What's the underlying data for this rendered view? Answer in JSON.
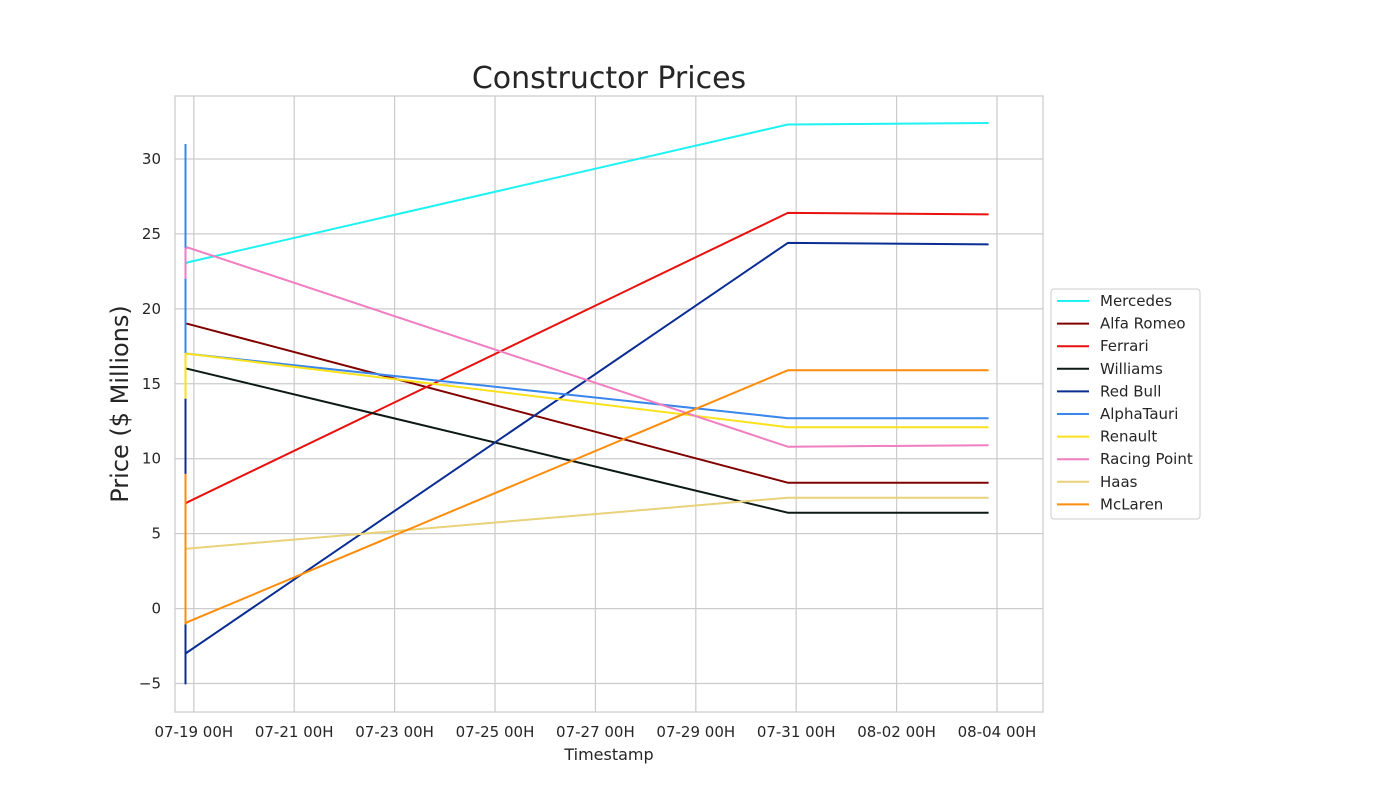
{
  "chart_data": {
    "type": "line",
    "title": "Constructor Prices",
    "xlabel": "Timestamp",
    "ylabel": "Price ($ Millions)",
    "x_ticks": [
      "07-19 00H",
      "07-21 00H",
      "07-23 00H",
      "07-25 00H",
      "07-27 00H",
      "07-29 00H",
      "07-31 00H",
      "08-02 00H",
      "08-04 00H"
    ],
    "y_ticks": [
      -5,
      0,
      5,
      10,
      15,
      20,
      25,
      30
    ],
    "xlim": [
      "2020-07-18T15:00",
      "2020-08-04T22:00"
    ],
    "ylim": [
      -6.9,
      34.2
    ],
    "grid": true,
    "legend_position": "center-right",
    "series": [
      {
        "name": "Mercedes",
        "color": "#1ef2f2",
        "points": [
          [
            "2020-07-18T20:00",
            27.0
          ],
          [
            "2020-07-18T20:00",
            23.0
          ],
          [
            "2020-07-18T21:00",
            23.1
          ],
          [
            "2020-07-30T20:00",
            32.3
          ],
          [
            "2020-08-03T20:00",
            32.4
          ]
        ]
      },
      {
        "name": "Alfa Romeo",
        "color": "#800000",
        "points": [
          [
            "2020-07-18T20:00",
            25.0
          ],
          [
            "2020-07-18T20:00",
            19.0
          ],
          [
            "2020-07-18T21:00",
            19.0
          ],
          [
            "2020-07-30T20:00",
            8.4
          ],
          [
            "2020-08-03T20:00",
            8.4
          ]
        ]
      },
      {
        "name": "Ferrari",
        "color": "#e8110e",
        "points": [
          [
            "2020-07-18T20:00",
            12.0
          ],
          [
            "2020-07-18T20:00",
            7.0
          ],
          [
            "2020-07-18T21:00",
            7.1
          ],
          [
            "2020-07-30T20:00",
            26.4
          ],
          [
            "2020-08-03T20:00",
            26.3
          ]
        ]
      },
      {
        "name": "Williams",
        "color": "#0d1a14",
        "points": [
          [
            "2020-07-18T20:00",
            18.0
          ],
          [
            "2020-07-18T20:00",
            16.0
          ],
          [
            "2020-07-18T21:00",
            16.0
          ],
          [
            "2020-07-30T20:00",
            6.4
          ],
          [
            "2020-08-03T20:00",
            6.4
          ]
        ]
      },
      {
        "name": "Red Bull",
        "color": "#0a2d94",
        "points": [
          [
            "2020-07-18T20:00",
            24.0
          ],
          [
            "2020-07-18T20:00",
            -5.0
          ],
          [
            "2020-07-18T20:00",
            -3.0
          ],
          [
            "2020-07-30T20:00",
            24.4
          ],
          [
            "2020-08-03T20:00",
            24.3
          ]
        ]
      },
      {
        "name": "AlphaTauri",
        "color": "#3a87ec",
        "points": [
          [
            "2020-07-18T20:00",
            31.0
          ],
          [
            "2020-07-18T20:00",
            17.0
          ],
          [
            "2020-07-18T21:00",
            17.0
          ],
          [
            "2020-07-30T20:00",
            12.7
          ],
          [
            "2020-08-03T20:00",
            12.7
          ]
        ]
      },
      {
        "name": "Renault",
        "color": "#f9e21b",
        "points": [
          [
            "2020-07-18T20:00",
            14.0
          ],
          [
            "2020-07-18T20:00",
            17.0
          ],
          [
            "2020-07-18T21:00",
            17.0
          ],
          [
            "2020-07-30T20:00",
            12.1
          ],
          [
            "2020-08-03T20:00",
            12.1
          ]
        ]
      },
      {
        "name": "Racing Point",
        "color": "#f07ec0",
        "points": [
          [
            "2020-07-18T20:00",
            22.0
          ],
          [
            "2020-07-18T20:00",
            24.0
          ],
          [
            "2020-07-18T21:00",
            24.1
          ],
          [
            "2020-07-30T20:00",
            10.8
          ],
          [
            "2020-08-03T20:00",
            10.9
          ]
        ]
      },
      {
        "name": "Haas",
        "color": "#e8d27a",
        "points": [
          [
            "2020-07-18T20:00",
            0.0
          ],
          [
            "2020-07-18T20:00",
            4.0
          ],
          [
            "2020-07-18T21:00",
            4.0
          ],
          [
            "2020-07-30T20:00",
            7.4
          ],
          [
            "2020-08-03T20:00",
            7.4
          ]
        ]
      },
      {
        "name": "McLaren",
        "color": "#ff8c0a",
        "points": [
          [
            "2020-07-18T20:00",
            9.0
          ],
          [
            "2020-07-18T20:00",
            -1.0
          ],
          [
            "2020-07-18T21:00",
            -0.9
          ],
          [
            "2020-07-30T20:00",
            15.9
          ],
          [
            "2020-08-03T20:00",
            15.9
          ]
        ]
      }
    ]
  }
}
